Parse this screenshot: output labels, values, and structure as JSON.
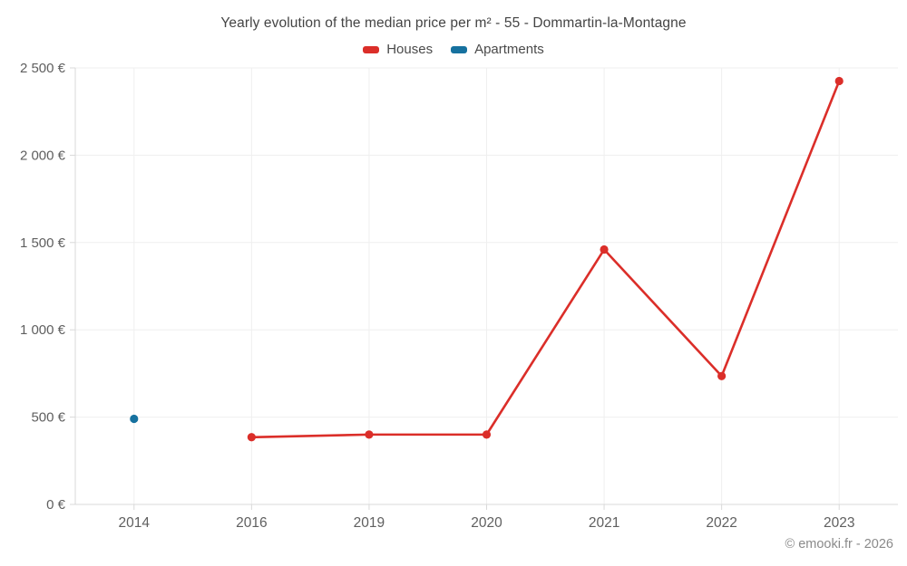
{
  "title": "Yearly evolution of the median price per m² - 55 - Dommartin-la-Montagne",
  "footer": "© emooki.fr - 2026",
  "colors": {
    "houses": "#db2e29",
    "apartments": "#16719f",
    "grid": "#efefef",
    "axis": "#d9d9d9",
    "tick_label": "#5f5f5f",
    "title_text": "#444444",
    "footer_text": "#8a8a8a"
  },
  "chart_data": {
    "type": "line",
    "categories": [
      "2014",
      "2016",
      "2019",
      "2020",
      "2021",
      "2022",
      "2023"
    ],
    "series": [
      {
        "name": "Houses",
        "color": "#db2e29",
        "values": [
          null,
          385,
          400,
          400,
          1460,
          735,
          2425
        ]
      },
      {
        "name": "Apartments",
        "color": "#16719f",
        "values": [
          490,
          null,
          null,
          null,
          null,
          null,
          null
        ]
      }
    ],
    "title": "Yearly evolution of the median price per m² - 55 - Dommartin-la-Montagne",
    "xlabel": "",
    "ylabel": "",
    "ylim": [
      0,
      2500
    ],
    "yticks": [
      {
        "value": 0,
        "label": "0 €"
      },
      {
        "value": 500,
        "label": "500 €"
      },
      {
        "value": 1000,
        "label": "1 000 €"
      },
      {
        "value": 1500,
        "label": "1 500 €"
      },
      {
        "value": 2000,
        "label": "2 000 €"
      },
      {
        "value": 2500,
        "label": "2 500 €"
      }
    ],
    "legend_position": "top",
    "grid": true
  }
}
